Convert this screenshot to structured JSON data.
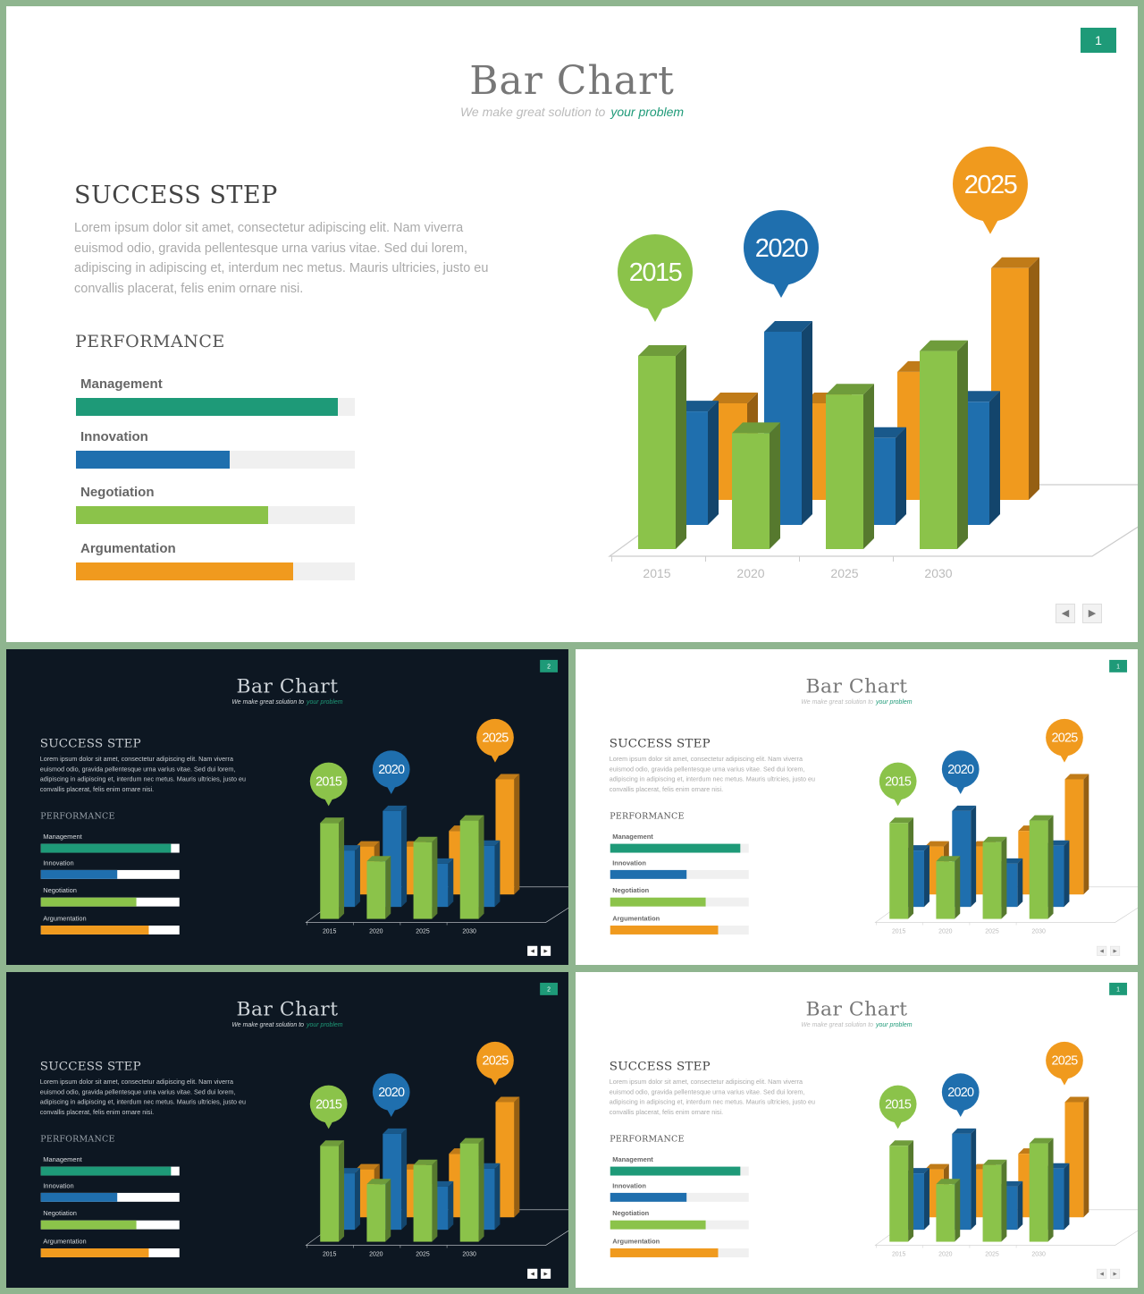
{
  "slide": {
    "title": "Bar Chart",
    "subtitle_main": "We make great solution to",
    "subtitle_highlight": "your problem",
    "success_title": "SUCCESS STEP",
    "success_text": "Lorem ipsum dolor sit amet, consectetur adipiscing elit. Nam viverra euismod odio, gravida pellentesque urna varius vitae. Sed dui lorem, adipiscing in adipiscing et, interdum nec metus. Mauris ultricies, justo eu convallis placerat, felis enim ornare nisi.",
    "performance_title": "PERFORMANCE",
    "skills": [
      {
        "label": "Management",
        "value": 0.94,
        "color": "#1e9a78"
      },
      {
        "label": "Innovation",
        "value": 0.55,
        "color": "#1f6fae"
      },
      {
        "label": "Negotiation",
        "value": 0.69,
        "color": "#8bc34a"
      },
      {
        "label": "Argumentation",
        "value": 0.78,
        "color": "#f09a1e"
      }
    ],
    "nav_prev": "◀",
    "nav_next": "▶"
  },
  "slides": [
    {
      "page": "1",
      "theme": "light"
    },
    {
      "page": "2",
      "theme": "dark"
    },
    {
      "page": "1",
      "theme": "light"
    },
    {
      "page": "2",
      "theme": "dark"
    },
    {
      "page": "1",
      "theme": "light"
    }
  ],
  "colors": {
    "green": "#8bc34a",
    "blue": "#1f6fae",
    "orange": "#f09a1e",
    "teal": "#1e9a78"
  },
  "chart_data": {
    "type": "bar",
    "style": "3d-clustered",
    "categories": [
      "2015",
      "2020",
      "2025",
      "2030"
    ],
    "series": [
      {
        "color": "#f09a1e",
        "values": [
          40,
          40,
          53,
          96
        ]
      },
      {
        "color": "#1f6fae",
        "values": [
          47,
          80,
          36,
          51
        ]
      },
      {
        "color": "#8bc34a",
        "values": [
          80,
          48,
          64,
          82
        ]
      }
    ],
    "callouts": [
      {
        "label": "2015",
        "color": "#8bc34a"
      },
      {
        "label": "2020",
        "color": "#1f6fae"
      },
      {
        "label": "2025",
        "color": "#f09a1e"
      }
    ],
    "grid": false
  }
}
